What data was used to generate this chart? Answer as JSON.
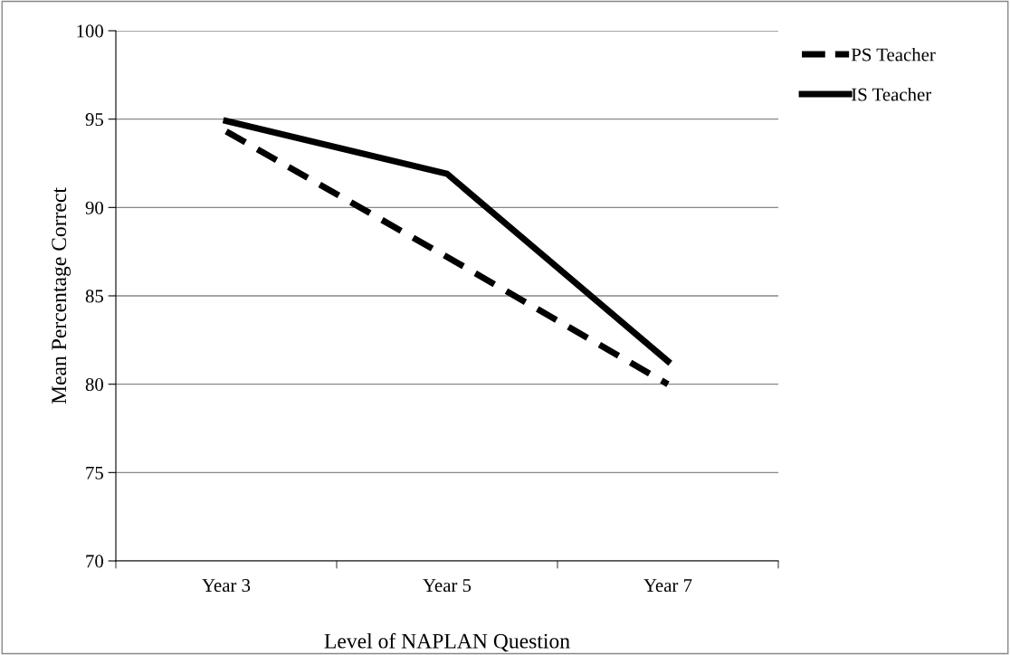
{
  "chart_data": {
    "type": "line",
    "xlabel": "Level of NAPLAN Question",
    "ylabel": "Mean Percentage Correct",
    "categories": [
      "Year 3",
      "Year 5",
      "Year 7"
    ],
    "series": [
      {
        "name": "PS Teacher",
        "color": "#000000",
        "values": [
          94.3,
          87.2,
          80.0
        ],
        "line_style": "dashed"
      },
      {
        "name": "IS Teacher",
        "color": "#000000",
        "values": [
          94.9,
          91.9,
          81.3
        ],
        "line_style": "solid"
      }
    ],
    "ylim": [
      70,
      100
    ],
    "yticks": [
      70,
      75,
      80,
      85,
      90,
      95,
      100
    ],
    "grid": "y",
    "legend": "top right",
    "marker": "none"
  }
}
